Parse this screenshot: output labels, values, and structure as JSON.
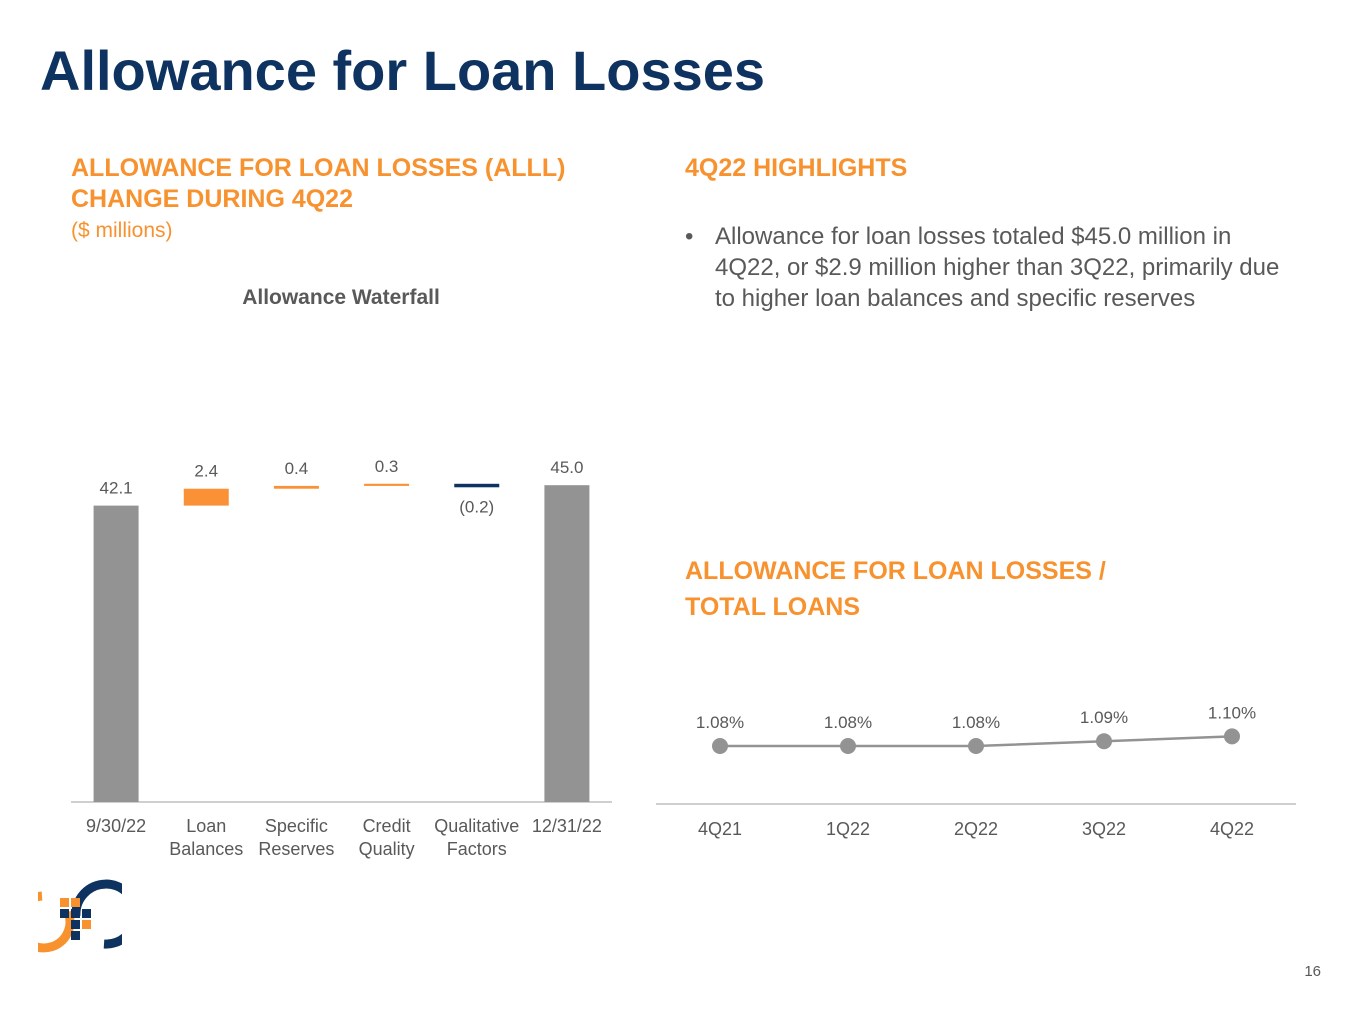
{
  "page": {
    "title": "Allowance for Loan Losses",
    "page_number": "16"
  },
  "left_panel": {
    "heading_line1": "ALLOWANCE FOR LOAN LOSSES (ALLL)",
    "heading_line2": "CHANGE DURING 4Q22",
    "units": "($ millions)"
  },
  "highlights": {
    "heading": "4Q22 HIGHLIGHTS",
    "bullet_char": "•",
    "bullets": [
      "Allowance for loan losses totaled $45.0 million in 4Q22, or $2.9 million higher than 3Q22, primarily due to higher loan balances and specific reserves"
    ]
  },
  "ratio_panel": {
    "heading_line1": "ALLOWANCE FOR LOAN LOSSES /",
    "heading_line2": "TOTAL LOANS"
  },
  "chart_data": [
    {
      "type": "bar",
      "subtype": "waterfall",
      "title": "Allowance Waterfall",
      "categories": [
        [
          "9/30/22"
        ],
        [
          "Loan",
          "Balances"
        ],
        [
          "Specific",
          "Reserves"
        ],
        [
          "Credit",
          "Quality"
        ],
        [
          "Qualitative",
          "Factors"
        ],
        [
          "12/31/22"
        ]
      ],
      "values": [
        42.1,
        2.4,
        0.4,
        0.3,
        -0.2,
        45.0
      ],
      "labels": [
        "42.1",
        "2.4",
        "0.4",
        "0.3",
        "(0.2)",
        "45.0"
      ],
      "kinds": [
        "total",
        "increase",
        "increase",
        "increase",
        "decrease",
        "total"
      ],
      "ylim": [
        0,
        50
      ],
      "grid": false,
      "colors": {
        "total": "#939393",
        "increase": "#fb9136",
        "decrease": "#0e3360",
        "axis": "#bfbfbf",
        "label": "#595959"
      }
    },
    {
      "type": "line",
      "title": "",
      "categories": [
        "4Q21",
        "1Q22",
        "2Q22",
        "3Q22",
        "4Q22"
      ],
      "values": [
        1.08,
        1.08,
        1.08,
        1.09,
        1.1
      ],
      "labels": [
        "1.08%",
        "1.08%",
        "1.08%",
        "1.09%",
        "1.10%"
      ],
      "ylim": [
        0.0,
        1.2
      ],
      "grid": false,
      "colors": {
        "line": "#939393",
        "marker": "#939393",
        "axis": "#bfbfbf",
        "label": "#595959"
      }
    }
  ],
  "colors": {
    "navy": "#0e3360",
    "orange": "#f7922f",
    "text_gray": "#595959"
  },
  "logo": {
    "icon": "bank-logo-icon"
  }
}
